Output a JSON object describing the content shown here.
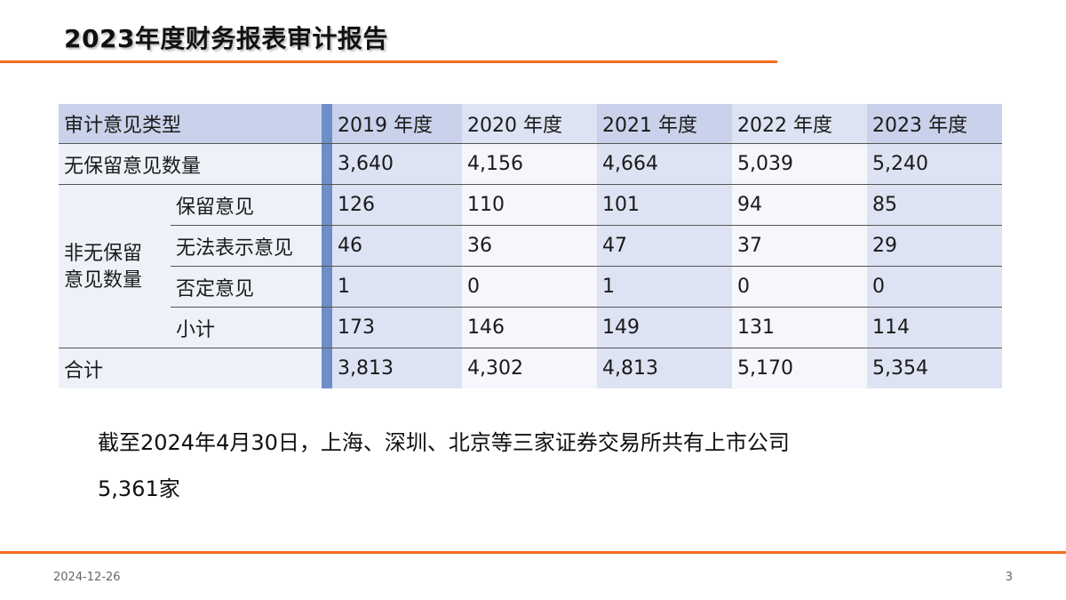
{
  "slide": {
    "title": "2023年度财务报表审计报告",
    "accent_color": "#f26b1d",
    "header_bg": "#c9d2ea",
    "strip_color": "#6e8ec8"
  },
  "table": {
    "header_label": "审计意见类型",
    "years": [
      "2019 年度",
      "2020 年度",
      "2021 年度",
      "2022 年度",
      "2023 年度"
    ],
    "row_unqualified": {
      "label": "无保留意见数量",
      "values": [
        "3,640",
        "4,156",
        "4,664",
        "5,039",
        "5,240"
      ]
    },
    "group_label": "非无保留意见数量",
    "group_label_line1": "非无保留",
    "group_label_line2": "意见数量",
    "row_qualified": {
      "label": "保留意见",
      "values": [
        "126",
        "110",
        "101",
        "94",
        "85"
      ]
    },
    "row_disclaimer": {
      "label": "无法表示意见",
      "values": [
        "46",
        "36",
        "47",
        "37",
        "29"
      ]
    },
    "row_adverse": {
      "label": "否定意见",
      "values": [
        "1",
        "0",
        "1",
        "0",
        "0"
      ]
    },
    "row_subtotal": {
      "label": "小计",
      "values": [
        "173",
        "146",
        "149",
        "131",
        "114"
      ]
    },
    "row_total": {
      "label": "合计",
      "values": [
        "3,813",
        "4,302",
        "4,813",
        "5,170",
        "5,354"
      ]
    }
  },
  "note": {
    "line1": "截至2024年4月30日，上海、深圳、北京等三家证券交易所共有上市公司",
    "line2": "5,361家"
  },
  "footer": {
    "date": "2024-12-26",
    "page": "3"
  }
}
